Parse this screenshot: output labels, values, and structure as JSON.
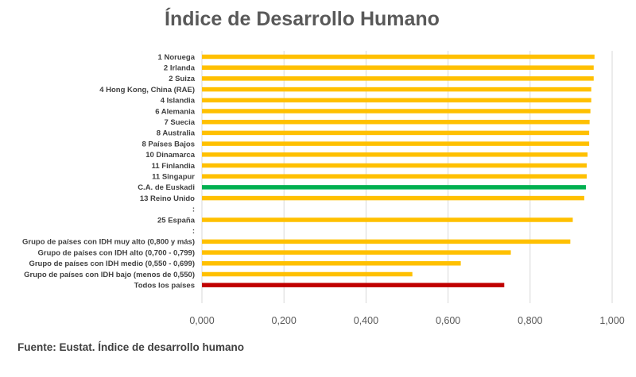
{
  "chart_data": {
    "type": "bar",
    "orientation": "horizontal",
    "title": "Índice de Desarrollo Humano",
    "categories": [
      "1 Noruega",
      "2 Irlanda",
      "2 Suiza",
      "4 Hong Kong, China (RAE)",
      "4 Islandia",
      "6 Alemania",
      "7 Suecia",
      "8 Australia",
      "8 Países Bajos",
      "10 Dinamarca",
      "11 Finlandia",
      "11 Singapur",
      "C.A. de Euskadi",
      "13 Reino Unido",
      ":",
      "25 España",
      ":",
      "Grupo de países con IDH muy alto (0,800 y más)",
      "Grupo de países con IDH  alto (0,700 - 0,799)",
      "Grupo de países con IDH medio (0,550 - 0,699)",
      "Grupo de países con IDH bajo (menos de 0,550)",
      "Todos los países"
    ],
    "values": [
      0.957,
      0.955,
      0.955,
      0.949,
      0.949,
      0.947,
      0.945,
      0.944,
      0.944,
      0.94,
      0.938,
      0.938,
      0.936,
      0.932,
      null,
      0.904,
      null,
      0.898,
      0.753,
      0.631,
      0.513,
      0.737
    ],
    "bar_colors": [
      "#FFC000",
      "#FFC000",
      "#FFC000",
      "#FFC000",
      "#FFC000",
      "#FFC000",
      "#FFC000",
      "#FFC000",
      "#FFC000",
      "#FFC000",
      "#FFC000",
      "#FFC000",
      "#00B050",
      "#FFC000",
      "#FFC000",
      "#FFC000",
      "#FFC000",
      "#FFC000",
      "#FFC000",
      "#FFC000",
      "#FFC000",
      "#C00000"
    ],
    "xlim": [
      0,
      1
    ],
    "xticks": [
      0,
      0.2,
      0.4,
      0.6,
      0.8,
      1.0
    ],
    "xtick_labels": [
      "0,000",
      "0,200",
      "0,400",
      "0,600",
      "0,800",
      "1,000"
    ],
    "grid": true,
    "gridline_color": "#D9D9D9",
    "xlabel": "",
    "ylabel": ""
  },
  "source_note": "Fuente: Eustat. Índice de desarrollo humano"
}
